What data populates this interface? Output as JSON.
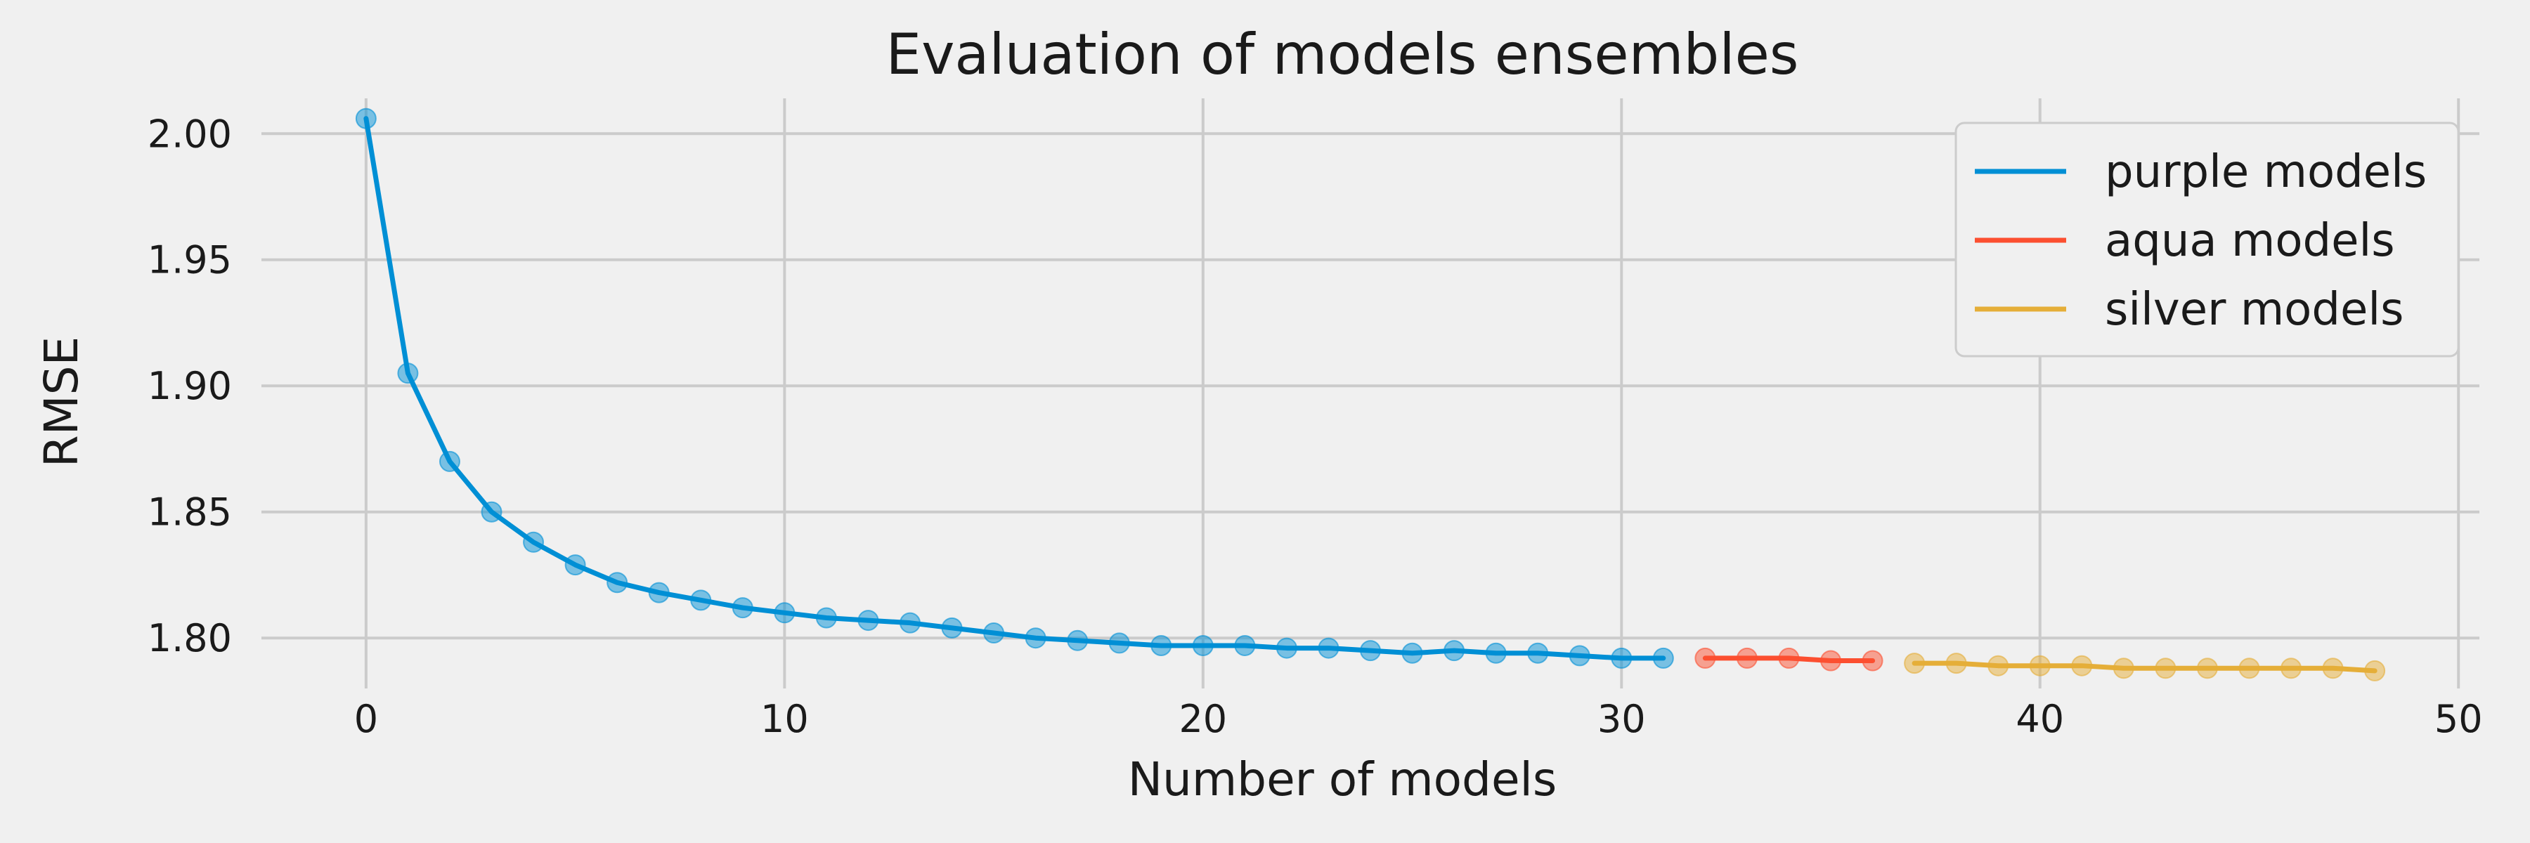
{
  "chart_data": {
    "type": "line",
    "title": "Evaluation of models ensembles",
    "xlabel": "Number of models",
    "ylabel": "RMSE",
    "xlim": [
      -2.5,
      50.5
    ],
    "ylim": [
      1.78,
      2.014
    ],
    "xticks": [
      0,
      10,
      20,
      30,
      40,
      50
    ],
    "yticks": [
      1.8,
      1.85,
      1.9,
      1.95,
      2.0
    ],
    "xtick_labels": [
      "0",
      "10",
      "20",
      "30",
      "40",
      "50"
    ],
    "ytick_labels": [
      "1.80",
      "1.85",
      "1.90",
      "1.95",
      "2.00"
    ],
    "grid": true,
    "legend_position": "top-right",
    "series": [
      {
        "name": "purple models",
        "color": "#008fd5",
        "x": [
          0,
          1,
          2,
          3,
          4,
          5,
          6,
          7,
          8,
          9,
          10,
          11,
          12,
          13,
          14,
          15,
          16,
          17,
          18,
          19,
          20,
          21,
          22,
          23,
          24,
          25,
          26,
          27,
          28,
          29,
          30,
          31
        ],
        "y": [
          2.006,
          1.905,
          1.87,
          1.85,
          1.838,
          1.829,
          1.822,
          1.818,
          1.815,
          1.812,
          1.81,
          1.808,
          1.807,
          1.806,
          1.804,
          1.802,
          1.8,
          1.799,
          1.798,
          1.797,
          1.797,
          1.797,
          1.796,
          1.796,
          1.795,
          1.794,
          1.795,
          1.794,
          1.794,
          1.793,
          1.792,
          1.792
        ]
      },
      {
        "name": "aqua models",
        "color": "#fc4f30",
        "x": [
          32,
          33,
          34,
          35,
          36
        ],
        "y": [
          1.792,
          1.792,
          1.792,
          1.791,
          1.791
        ]
      },
      {
        "name": "silver models",
        "color": "#e5ae38",
        "x": [
          37,
          38,
          39,
          40,
          41,
          42,
          43,
          44,
          45,
          46,
          47,
          48
        ],
        "y": [
          1.79,
          1.79,
          1.789,
          1.789,
          1.789,
          1.788,
          1.788,
          1.788,
          1.788,
          1.788,
          1.788,
          1.787
        ]
      }
    ]
  }
}
